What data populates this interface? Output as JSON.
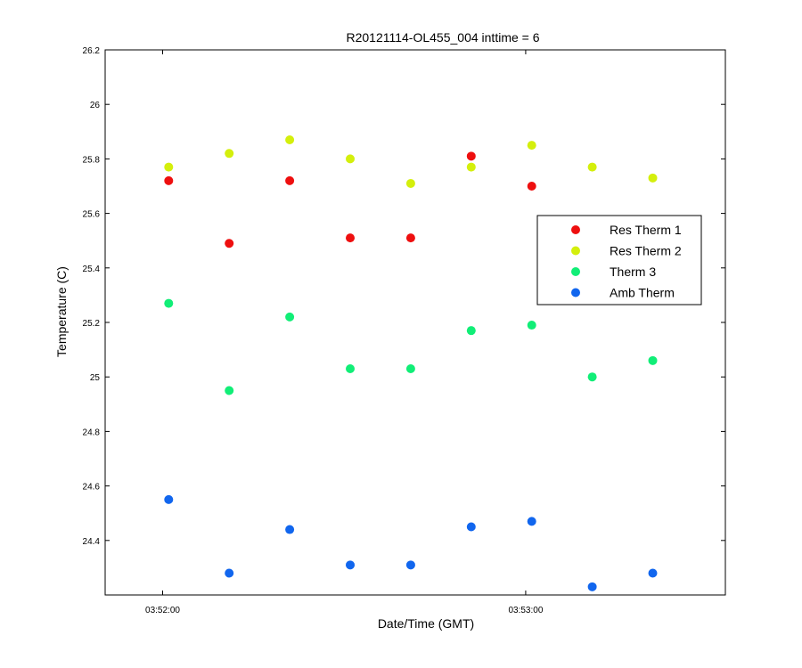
{
  "chart_data": {
    "type": "scatter",
    "title": "R20121114-OL455_004 inttime = 6",
    "xlabel": "Date/Time (GMT)",
    "ylabel": "Temperature (C)",
    "x_unit": "time (GMT)",
    "x_ticks": [
      "03:52:00",
      "03:53:00"
    ],
    "xlim": [
      "03:51:50.5",
      "03:53:33"
    ],
    "ylim": [
      24.2,
      26.2
    ],
    "y_ticks": [
      "24.4",
      "24.6",
      "24.8",
      "25",
      "25.2",
      "25.4",
      "25.6",
      "25.8",
      "26",
      "26.2"
    ],
    "x": [
      "03:52:01",
      "03:52:11",
      "03:52:21",
      "03:52:31",
      "03:52:41",
      "03:52:51",
      "03:53:01",
      "03:53:11",
      "03:53:21"
    ],
    "grid": false,
    "legend_position": "right",
    "series": [
      {
        "name": "Res Therm 1",
        "color": "#ee0f0f",
        "values": [
          25.72,
          25.49,
          25.72,
          25.51,
          25.51,
          25.81,
          25.7,
          null,
          null
        ]
      },
      {
        "name": "Res Therm 2",
        "color": "#d4ef0c",
        "values": [
          25.77,
          25.82,
          25.87,
          25.8,
          25.71,
          25.77,
          25.85,
          25.77,
          25.73
        ]
      },
      {
        "name": "Therm 3",
        "color": "#11ee77",
        "values": [
          25.27,
          24.95,
          25.22,
          25.03,
          25.03,
          25.17,
          25.19,
          25.0,
          25.06
        ]
      },
      {
        "name": "Amb Therm",
        "color": "#1166ee",
        "values": [
          24.55,
          24.28,
          24.44,
          24.31,
          24.31,
          24.45,
          24.47,
          24.23,
          24.28
        ]
      }
    ]
  }
}
